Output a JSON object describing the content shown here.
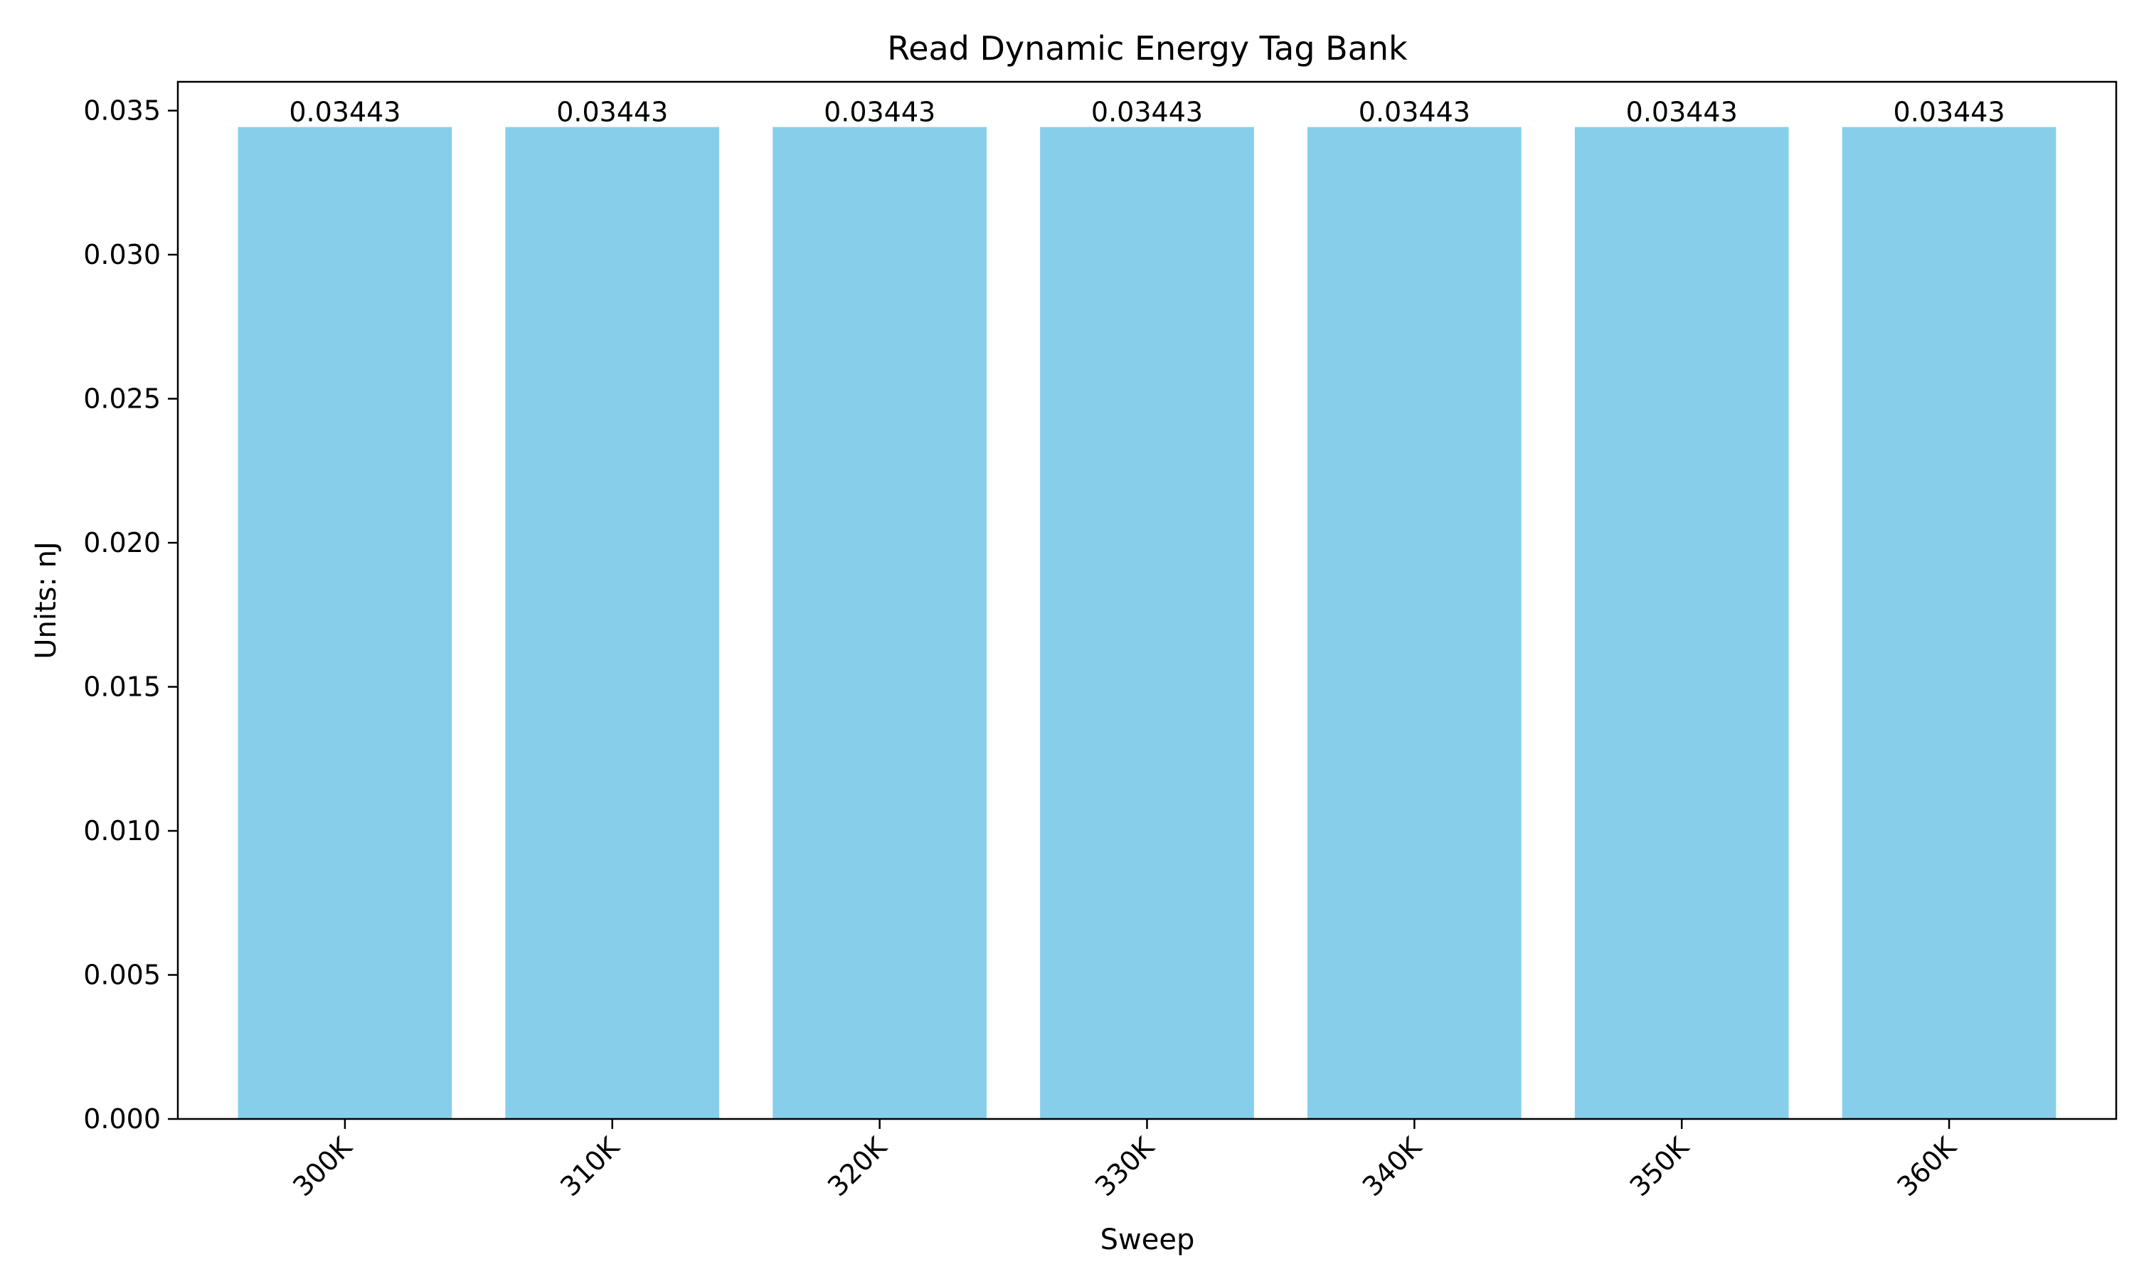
{
  "chart_data": {
    "type": "bar",
    "title": "Read Dynamic Energy Tag Bank",
    "xlabel": "Sweep",
    "ylabel": "Units: nJ",
    "categories": [
      "300K",
      "310K",
      "320K",
      "330K",
      "340K",
      "350K",
      "360K"
    ],
    "values": [
      0.03443,
      0.03443,
      0.03443,
      0.03443,
      0.03443,
      0.03443,
      0.03443
    ],
    "data_labels": [
      "0.03443",
      "0.03443",
      "0.03443",
      "0.03443",
      "0.03443",
      "0.03443",
      "0.03443"
    ],
    "ylim": [
      0,
      0.036
    ],
    "yticks": [
      0,
      0.005,
      0.01,
      0.015,
      0.02,
      0.025,
      0.03,
      0.035
    ],
    "ytick_labels": [
      "0.000",
      "0.005",
      "0.010",
      "0.015",
      "0.020",
      "0.025",
      "0.030",
      "0.035"
    ],
    "grid": false,
    "bar_color": "#87CEEB",
    "axis_color": "#000000"
  }
}
